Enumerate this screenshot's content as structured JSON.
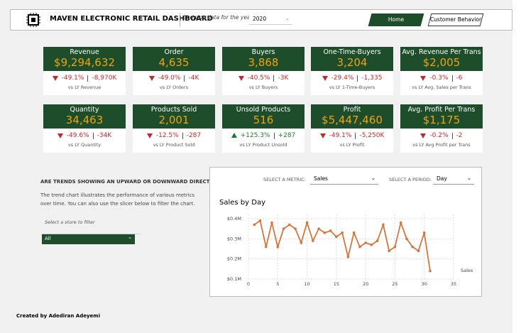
{
  "header": {
    "title": "MAVEN ELECTRONIC RETAIL DASHBOARD",
    "year_label": "Showing data for the year:",
    "year": "2020",
    "nav": [
      "Home",
      "Customer Behavior"
    ]
  },
  "kpis": [
    {
      "title": "Revenue",
      "value": "$9,294,632",
      "pct": "-49.1%",
      "abs": "-8,970K",
      "compare": "vs LY Revenue",
      "direction": "down"
    },
    {
      "title": "Order",
      "value": "4,635",
      "pct": "-49.0%",
      "abs": "-4K",
      "compare": "vs LY Orders",
      "direction": "down"
    },
    {
      "title": "Buyers",
      "value": "3,868",
      "pct": "-40.5%",
      "abs": "-3K",
      "compare": "vs LY Buyers",
      "direction": "down"
    },
    {
      "title": "One-Time-Buyers",
      "value": "3,204",
      "pct": "-29.4%",
      "abs": "-1,335",
      "compare": "vs LY 1-Time-Buyers",
      "direction": "down"
    },
    {
      "title": "Avg. Revenue Per Trans",
      "value": "$2,005",
      "pct": "-0.3%",
      "abs": "-6",
      "compare": "vs LY Avg. Sales per Trans",
      "direction": "down"
    },
    {
      "title": "Quantity",
      "value": "34,463",
      "pct": "-49.6%",
      "abs": "-34K",
      "compare": "vs LY Quantity",
      "direction": "down"
    },
    {
      "title": "Products Sold",
      "value": "2,001",
      "pct": "-12.5%",
      "abs": "-287",
      "compare": "vs LY Product Sold",
      "direction": "down"
    },
    {
      "title": "Unsold Products",
      "value": "516",
      "pct": "+125.3%",
      "abs": "+287",
      "compare": "vs LY Product Unsold",
      "direction": "up"
    },
    {
      "title": "Profit",
      "value": "$5,447,460",
      "pct": "-49.1%",
      "abs": "-5,250K",
      "compare": "vs LY Profit",
      "direction": "down"
    },
    {
      "title": "Avg. Profit Per Trans",
      "value": "$1,175",
      "pct": "-0.2%",
      "abs": "-2",
      "compare": "vs LY Avg Profit per Trans",
      "direction": "down"
    }
  ],
  "trend": {
    "heading": "ARE TRENDS SHOWING AN UPWARD OR DOWNWARD DIRECTION?",
    "text": "The trend chart illustrates the performance of various metrics over time. You can also use the slicer below to filter the chart.",
    "store_label": "Select a store to filter",
    "store": "All",
    "metric_label": "SELECT A METRIC:",
    "metric": "Sales",
    "period_label": "SELECT A PERIOD:",
    "period": "Day"
  },
  "chart_data": {
    "type": "line",
    "title": "Sales by Day",
    "x": [
      1,
      2,
      3,
      4,
      5,
      6,
      7,
      8,
      9,
      10,
      11,
      12,
      13,
      14,
      15,
      16,
      17,
      18,
      19,
      20,
      21,
      22,
      23,
      24,
      25,
      26,
      27,
      28,
      29,
      30,
      31
    ],
    "series": [
      {
        "name": "Sales",
        "color": "#d8753a",
        "values": [
          0.37,
          0.39,
          0.26,
          0.38,
          0.26,
          0.35,
          0.37,
          0.35,
          0.28,
          0.38,
          0.29,
          0.35,
          0.33,
          0.34,
          0.31,
          0.33,
          0.21,
          0.33,
          0.26,
          0.28,
          0.27,
          0.29,
          0.37,
          0.24,
          0.26,
          0.38,
          0.3,
          0.26,
          0.24,
          0.33,
          0.14
        ]
      }
    ],
    "xlim": [
      0,
      35
    ],
    "xticks": [
      0,
      5,
      10,
      15,
      20,
      25,
      30,
      35
    ],
    "ylim": [
      0.1,
      0.4
    ],
    "yticks": [
      {
        "value": 0.1,
        "label": "$0.1M"
      },
      {
        "value": 0.2,
        "label": "$0.2M"
      },
      {
        "value": 0.3,
        "label": "$0.3M"
      },
      {
        "value": 0.4,
        "label": "$0.4M"
      }
    ],
    "grid": true
  },
  "footer": "Created by Adediran Adeyemi"
}
